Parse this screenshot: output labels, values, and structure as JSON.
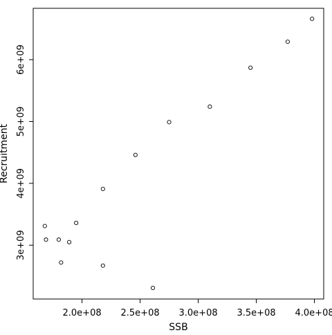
{
  "chart_data": {
    "type": "scatter",
    "title": "",
    "xlabel": "SSB",
    "ylabel": "Recruitment",
    "xlim": [
      158000000,
      408000000
    ],
    "ylim": [
      2130000000,
      6830000000
    ],
    "x_ticks": [
      {
        "value": 200000000,
        "label": "2.0e+08"
      },
      {
        "value": 250000000,
        "label": "2.5e+08"
      },
      {
        "value": 300000000,
        "label": "3.0e+08"
      },
      {
        "value": 350000000,
        "label": "3.5e+08"
      },
      {
        "value": 400000000,
        "label": "4.0e+08"
      }
    ],
    "y_ticks": [
      {
        "value": 3000000000,
        "label": "3e+09"
      },
      {
        "value": 4000000000,
        "label": "4e+09"
      },
      {
        "value": 5000000000,
        "label": "5e+09"
      },
      {
        "value": 6000000000,
        "label": "6e+09"
      }
    ],
    "grid": false,
    "legend": "none",
    "marker": "open-circle",
    "colors": {
      "points": "#000000",
      "axis": "#000000",
      "background": "#ffffff"
    },
    "points": [
      {
        "x": 398000000,
        "y": 6660000000
      },
      {
        "x": 377000000,
        "y": 6290000000
      },
      {
        "x": 345000000,
        "y": 5870000000
      },
      {
        "x": 310000000,
        "y": 5240000000
      },
      {
        "x": 275000000,
        "y": 4990000000
      },
      {
        "x": 246000000,
        "y": 4460000000
      },
      {
        "x": 218000000,
        "y": 3910000000
      },
      {
        "x": 195000000,
        "y": 3360000000
      },
      {
        "x": 168000000,
        "y": 3310000000
      },
      {
        "x": 169000000,
        "y": 3090000000
      },
      {
        "x": 180000000,
        "y": 3090000000
      },
      {
        "x": 189000000,
        "y": 3050000000
      },
      {
        "x": 182000000,
        "y": 2720000000
      },
      {
        "x": 218000000,
        "y": 2670000000
      },
      {
        "x": 261000000,
        "y": 2310000000
      }
    ]
  }
}
